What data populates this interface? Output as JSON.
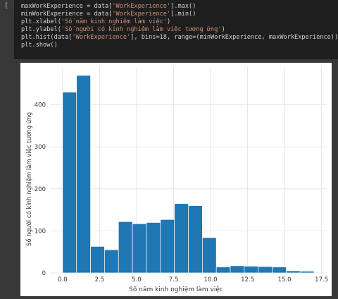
{
  "cell": {
    "run_indicator": "[ ]",
    "code_lines": [
      [
        {
          "t": "maxWorkExperience = data["
        },
        {
          "t": "'WorkExperience'",
          "s": 1
        },
        {
          "t": "].max()"
        }
      ],
      [
        {
          "t": "minWorkExperience = data["
        },
        {
          "t": "'WorkExperience'",
          "s": 1
        },
        {
          "t": "].min()"
        }
      ],
      [
        {
          "t": "plt.xlabel("
        },
        {
          "t": "'Số năm kinh nghiệm làm việc'",
          "s": 1
        },
        {
          "t": ")"
        }
      ],
      [
        {
          "t": "plt.ylabel("
        },
        {
          "t": "'Số người có kinh nghiệm làm việc tương ứng'",
          "s": 1
        },
        {
          "t": ")"
        }
      ],
      [
        {
          "t": "plt.hist(data["
        },
        {
          "t": "'WorkExperience'",
          "s": 1
        },
        {
          "t": "], bins=18, range=(minWorkExperience, maxWorkExperience))"
        }
      ],
      [
        {
          "t": "plt.show()"
        }
      ]
    ]
  },
  "colors": {
    "bar": "#1f77b4",
    "grid": "#e0e0e0",
    "axis_text": "#333333",
    "string_literal": "#ce9178",
    "code_text": "#d4d4d4"
  },
  "chart_data": {
    "type": "bar",
    "xlabel": "Số năm kinh nghiệm làm việc",
    "ylabel": "Số người có kinh nghiệm làm việc tương ứng",
    "xlim": [
      -0.85,
      17.85
    ],
    "ylim": [
      0,
      490
    ],
    "xticks": [
      0.0,
      2.5,
      5.0,
      7.5,
      10.0,
      12.5,
      15.0,
      17.5
    ],
    "xtick_labels": [
      "0.0",
      "2.5",
      "5.0",
      "7.5",
      "10.0",
      "12.5",
      "15.0",
      "17.5"
    ],
    "yticks": [
      0,
      100,
      200,
      300,
      400
    ],
    "ytick_labels": [
      "0",
      "100",
      "200",
      "300",
      "400"
    ],
    "grid": true,
    "bin_range": [
      0,
      17
    ],
    "bins": 18,
    "values": [
      430,
      470,
      63,
      55,
      122,
      117,
      120,
      127,
      165,
      160,
      84,
      14,
      17,
      16,
      15,
      14,
      5,
      4
    ]
  }
}
